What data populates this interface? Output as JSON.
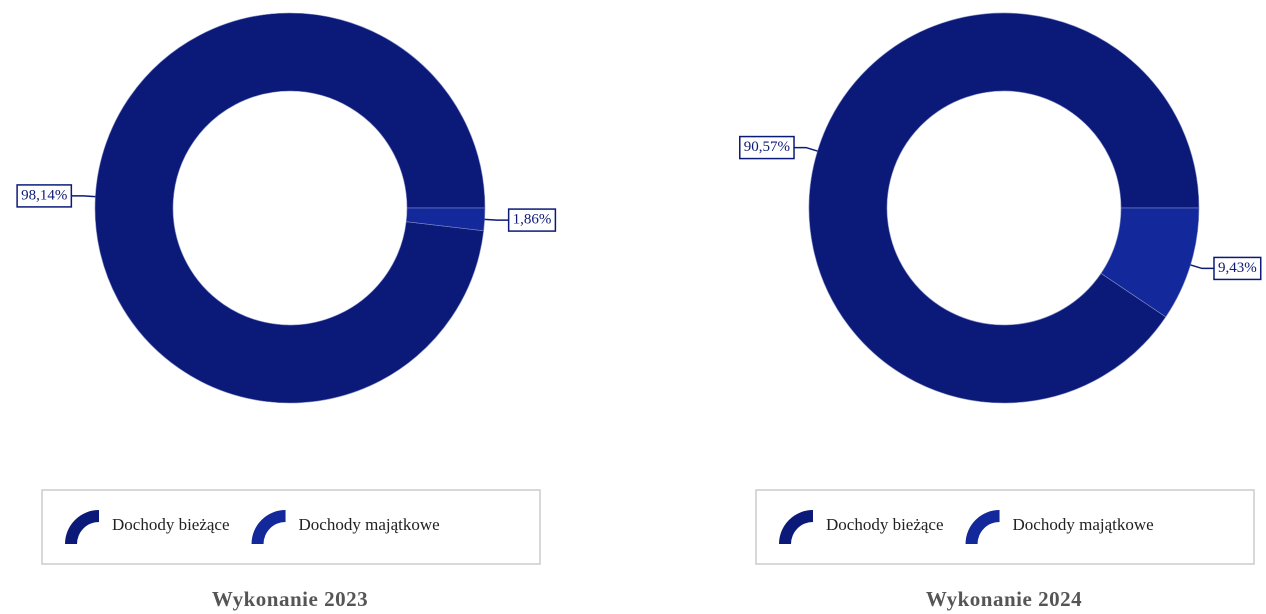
{
  "chart_data": [
    {
      "type": "pie",
      "title": "Wykonanie 2023",
      "categories": [
        "Dochody bieżące",
        "Dochody majątkowe"
      ],
      "values": [
        98.14,
        1.86
      ],
      "value_labels": [
        "98,14%",
        "1,86%"
      ],
      "colors": [
        "#0b1a78",
        "#13289a"
      ]
    },
    {
      "type": "pie",
      "title": "Wykonanie 2024",
      "categories": [
        "Dochody bieżące",
        "Dochody majątkowe"
      ],
      "values": [
        90.57,
        9.43
      ],
      "value_labels": [
        "90,57%",
        "9,43%"
      ],
      "colors": [
        "#0b1a78",
        "#13289a"
      ]
    }
  ]
}
